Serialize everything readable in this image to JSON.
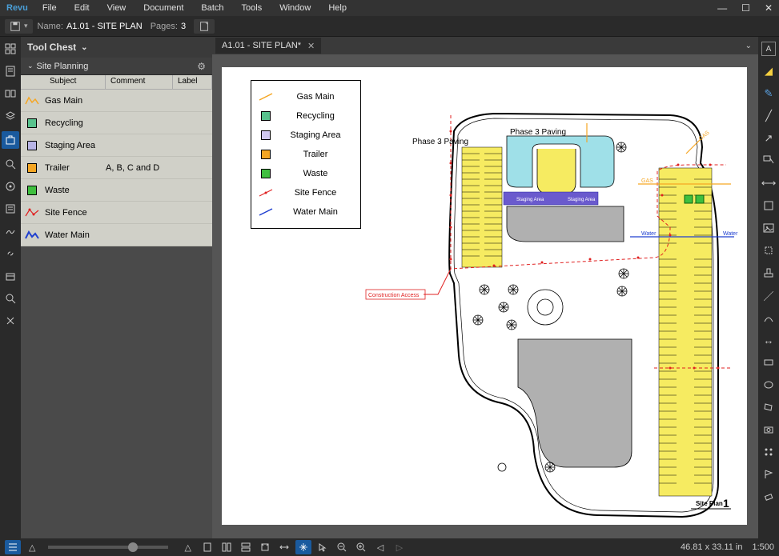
{
  "menubar": {
    "brand": "Revu",
    "items": [
      "File",
      "Edit",
      "View",
      "Document",
      "Batch",
      "Tools",
      "Window",
      "Help"
    ]
  },
  "docbar": {
    "name_label": "Name:",
    "name_value": "A1.01 - SITE PLAN",
    "pages_label": "Pages:",
    "pages_value": "3"
  },
  "panel": {
    "title": "Tool Chest",
    "section": "Site Planning",
    "columns": {
      "c1": "Subject",
      "c2": "Comment",
      "c3": "Label"
    },
    "rows": [
      {
        "subject": "Gas Main",
        "comment": "",
        "icon": "gas",
        "color": "#f5a623"
      },
      {
        "subject": "Recycling",
        "comment": "",
        "icon": "sq",
        "color": "#58c28d"
      },
      {
        "subject": "Staging Area",
        "comment": "",
        "icon": "sq",
        "color": "#b8b4e6"
      },
      {
        "subject": "Trailer",
        "comment": "A, B, C and D",
        "icon": "sq",
        "color": "#f5a623"
      },
      {
        "subject": "Waste",
        "comment": "",
        "icon": "sq",
        "color": "#3fbf3f"
      },
      {
        "subject": "Site Fence",
        "comment": "",
        "icon": "fence",
        "color": "#e02020"
      },
      {
        "subject": "Water Main",
        "comment": "",
        "icon": "water",
        "color": "#2040d0"
      }
    ]
  },
  "tab": {
    "title": "A1.01 - SITE PLAN*"
  },
  "legend": {
    "rows": [
      {
        "label": "Gas Main",
        "sym": "line",
        "color": "#f5a623"
      },
      {
        "label": "Recycling",
        "sym": "sq",
        "color": "#58c28d"
      },
      {
        "label": "Staging Area",
        "sym": "sq",
        "color": "#d0c8f0"
      },
      {
        "label": "Trailer",
        "sym": "sq",
        "color": "#f5a623"
      },
      {
        "label": "Waste",
        "sym": "sq",
        "color": "#3fbf3f"
      },
      {
        "label": "Site Fence",
        "sym": "fence",
        "color": "#e02020"
      },
      {
        "label": "Water Main",
        "sym": "line",
        "color": "#2040d0"
      }
    ]
  },
  "annotations": {
    "phase3a": "Phase 3 Paving",
    "phase3b": "Phase 3 Paving",
    "construction_access": "Construction Access",
    "gas": "GAS",
    "water": "Water",
    "siteplan_label": "Site Plan",
    "sheet_number": "1"
  },
  "colors": {
    "parking_fill": "#f6eb61",
    "pool_fill": "#9fe0e8",
    "building_fill": "#b0b0b0",
    "staging_fill": "#6a5acd",
    "site_fence": "#e02020",
    "gas": "#f5a623",
    "water": "#2040d0",
    "outline": "#000000",
    "bg": "#ffffff"
  },
  "status": {
    "coords": "46.81 x 33.11 in",
    "scale": "1:500"
  }
}
